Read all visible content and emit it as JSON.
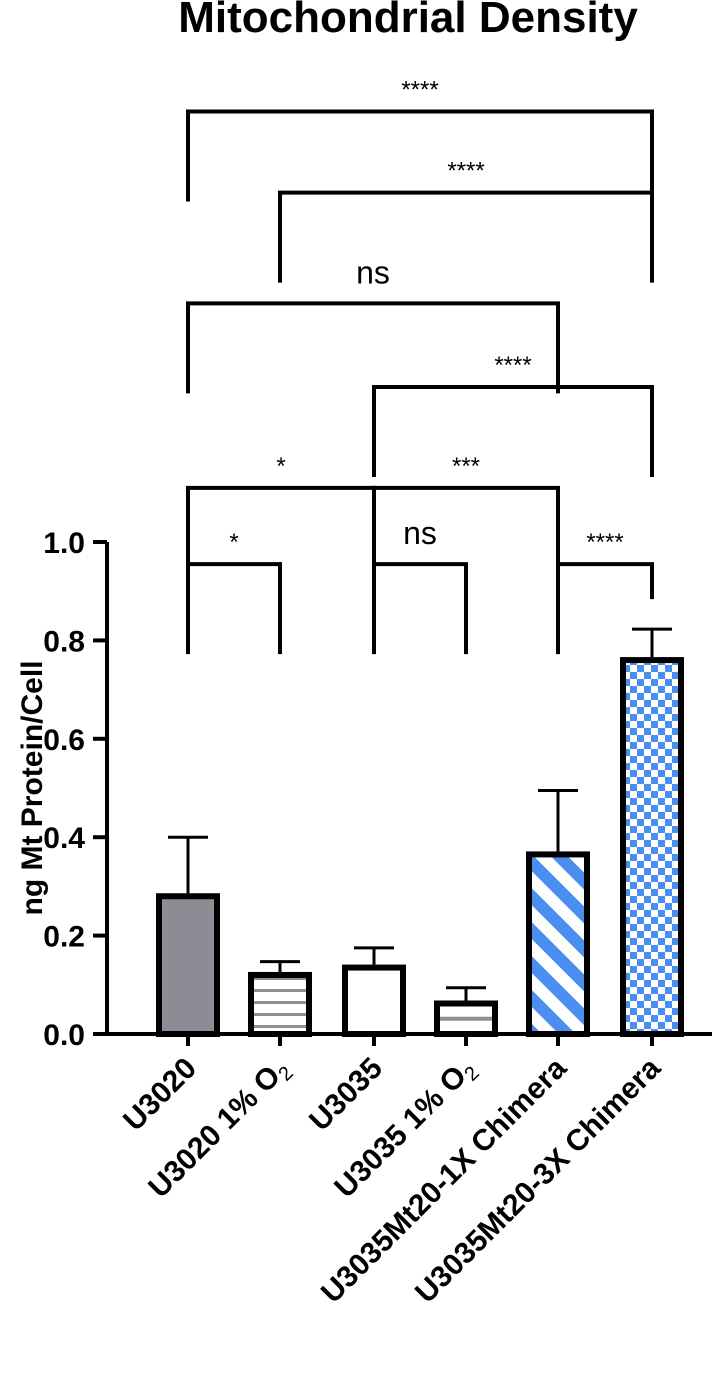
{
  "chart_data": {
    "type": "bar",
    "title": "Mitochondrial Density",
    "ylabel": "ng Mt Protein/Cell",
    "xlabel": "",
    "ylim": [
      0,
      1.0
    ],
    "yticks": [
      "0.0",
      "0.2",
      "0.4",
      "0.6",
      "0.8",
      "1.0"
    ],
    "categories": [
      {
        "pre": "U3020",
        "sub": "",
        "post": ""
      },
      {
        "pre": "U3020 1% O",
        "sub": "2",
        "post": ""
      },
      {
        "pre": "U3035",
        "sub": "",
        "post": ""
      },
      {
        "pre": "U3035 1% O",
        "sub": "2",
        "post": ""
      },
      {
        "pre": "U3035Mt20-1X Chimera",
        "sub": "",
        "post": ""
      },
      {
        "pre": "U3035Mt20-3X Chimera",
        "sub": "",
        "post": ""
      }
    ],
    "values": [
      0.28,
      0.12,
      0.135,
      0.062,
      0.365,
      0.76
    ],
    "errors": [
      0.12,
      0.027,
      0.04,
      0.032,
      0.13,
      0.063
    ],
    "fills": [
      "gray",
      "hstripes",
      "white",
      "hline",
      "diagonal",
      "checker"
    ],
    "colors": {
      "gray": "#8c8c94",
      "blue": "#4a8ff0",
      "stripe_gray": "#909090"
    },
    "comparisons": [
      {
        "from": 0,
        "to": 1,
        "label": "*",
        "level": 0.955
      },
      {
        "from": 0,
        "to": 2,
        "label": "*",
        "level": 1.11
      },
      {
        "from": 0,
        "to": 4,
        "label": "ns",
        "level": 1.485
      },
      {
        "from": 0,
        "to": 5,
        "label": "****",
        "level": 1.875
      },
      {
        "from": 1,
        "to": 5,
        "label": "****",
        "level": 1.71
      },
      {
        "from": 2,
        "to": 3,
        "label": "ns",
        "level": 0.955
      },
      {
        "from": 2,
        "to": 4,
        "label": "***",
        "level": 1.11
      },
      {
        "from": 2,
        "to": 5,
        "label": "****",
        "level": 1.315
      },
      {
        "from": 4,
        "to": 5,
        "label": "****",
        "level": 0.955
      }
    ]
  }
}
